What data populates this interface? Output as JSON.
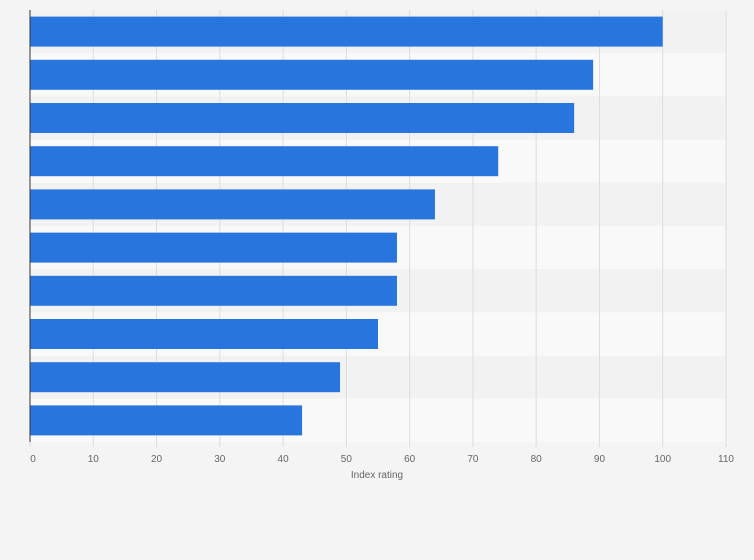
{
  "chart_data": {
    "type": "bar",
    "orientation": "horizontal",
    "title": "",
    "xlabel": "Index rating",
    "ylabel": "",
    "xlim": [
      0,
      110
    ],
    "x_ticks": [
      0,
      10,
      20,
      30,
      40,
      50,
      60,
      70,
      80,
      90,
      100,
      110
    ],
    "categories": [
      "",
      "",
      "",
      "",
      "",
      "",
      "",
      "",
      "",
      ""
    ],
    "values": [
      100,
      89,
      86,
      74,
      64,
      58,
      58,
      55,
      49,
      43
    ],
    "grid": true
  },
  "colors": {
    "bar": "#2876dd",
    "band_light": "#f9f9f9",
    "band_dark": "#f2f2f2",
    "grid": "#dddddd",
    "axis": "#333333",
    "background": "#f4f4f4"
  }
}
